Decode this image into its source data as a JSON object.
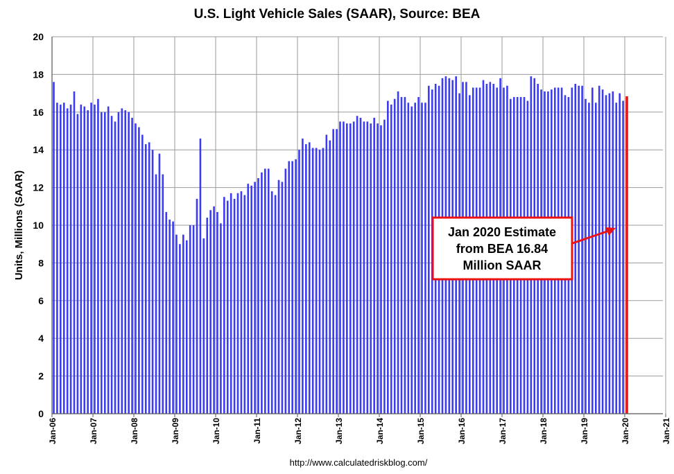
{
  "chart_data": {
    "type": "bar",
    "title": "U.S. Light Vehicle Sales (SAAR), Source: BEA",
    "ylabel": "Units, Millions (SAAR)",
    "xlabel": "",
    "source": "http://www.calculatedriskblog.com/",
    "ylim": [
      0,
      20
    ],
    "yticks": [
      0,
      2,
      4,
      6,
      8,
      10,
      12,
      14,
      16,
      18,
      20
    ],
    "grid": true,
    "x_start": "Jan-06",
    "x_ticks": [
      "Jan-06",
      "Jan-07",
      "Jan-08",
      "Jan-09",
      "Jan-10",
      "Jan-11",
      "Jan-12",
      "Jan-13",
      "Jan-14",
      "Jan-15",
      "Jan-16",
      "Jan-17",
      "Jan-18",
      "Jan-19",
      "Jan-20",
      "Jan-21"
    ],
    "bar_color": "#3b3bef",
    "highlight_color": "#ee1111",
    "values": [
      17.6,
      16.5,
      16.4,
      16.5,
      16.2,
      16.4,
      17.1,
      15.9,
      16.4,
      16.3,
      16.1,
      16.5,
      16.4,
      16.7,
      16.0,
      16.0,
      16.3,
      15.8,
      15.5,
      16.0,
      16.2,
      16.1,
      16.0,
      15.7,
      15.4,
      15.2,
      14.8,
      14.3,
      14.4,
      14.0,
      12.7,
      13.8,
      12.7,
      10.7,
      10.3,
      10.2,
      9.5,
      9.0,
      9.5,
      9.2,
      10.0,
      10.0,
      11.4,
      14.6,
      9.3,
      10.4,
      10.8,
      11.0,
      10.7,
      10.1,
      11.5,
      11.3,
      11.7,
      11.4,
      11.7,
      11.8,
      11.6,
      12.2,
      12.1,
      12.3,
      12.5,
      12.8,
      13.0,
      13.0,
      11.8,
      11.6,
      12.4,
      12.3,
      13.0,
      13.4,
      13.4,
      13.5,
      14.0,
      14.6,
      14.3,
      14.4,
      14.1,
      14.1,
      14.0,
      14.1,
      14.8,
      14.5,
      15.1,
      15.1,
      15.5,
      15.5,
      15.4,
      15.4,
      15.5,
      15.8,
      15.7,
      15.5,
      15.5,
      15.4,
      15.7,
      15.4,
      15.3,
      15.6,
      16.6,
      16.4,
      16.7,
      17.1,
      16.8,
      16.8,
      16.5,
      16.3,
      16.5,
      16.8,
      16.5,
      16.5,
      17.4,
      17.2,
      17.5,
      17.4,
      17.8,
      17.9,
      17.8,
      17.7,
      17.9,
      17.0,
      17.6,
      17.6,
      16.9,
      17.3,
      17.3,
      17.3,
      17.7,
      17.5,
      17.6,
      17.5,
      17.3,
      17.8,
      17.3,
      17.4,
      16.7,
      16.8,
      16.8,
      16.8,
      16.8,
      16.6,
      17.9,
      17.8,
      17.5,
      17.2,
      17.1,
      17.1,
      17.2,
      17.3,
      17.3,
      17.3,
      16.9,
      16.8,
      17.3,
      17.5,
      17.4,
      17.4,
      16.7,
      16.5,
      17.3,
      16.5,
      17.4,
      17.2,
      16.9,
      17.0,
      17.1,
      16.5,
      17.0,
      16.6,
      16.84
    ],
    "annotation": {
      "lines": [
        "Jan 2020 Estimate",
        "from BEA 16.84",
        "Million SAAR"
      ],
      "points_to": "Jan-20"
    }
  }
}
